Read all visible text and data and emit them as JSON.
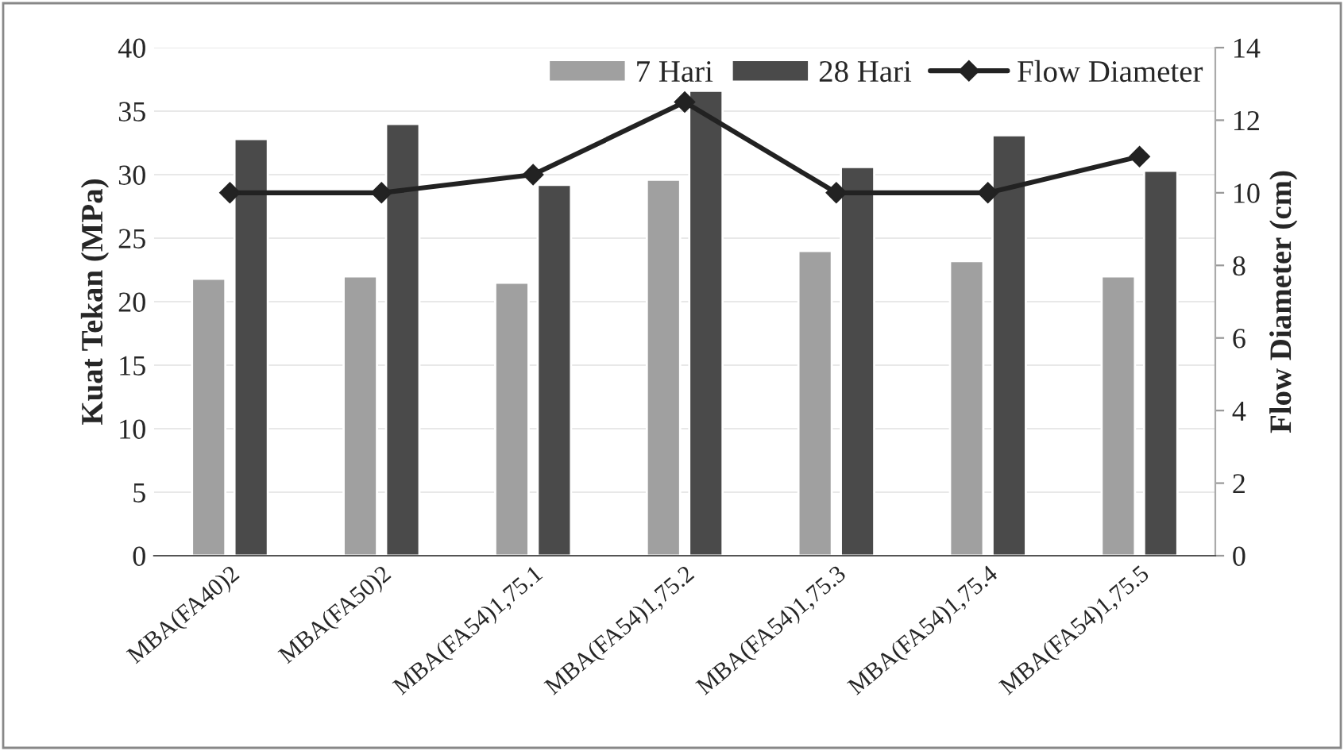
{
  "chart_data": {
    "type": "bar",
    "ylabel": "Kuat Tekan (MPa)",
    "y2label": "Flow Diameter (cm)",
    "categories": [
      "MBA(FA40)2",
      "MBA(FA50)2",
      "MBA(FA54)1,75.1",
      "MBA(FA54)1,75.2",
      "MBA(FA54)1,75.3",
      "MBA(FA54)1,75.4",
      "MBA(FA54)1,75.5"
    ],
    "series": [
      {
        "name": "7 Hari",
        "color": "#a0a0a0",
        "values": [
          21.8,
          22.0,
          21.5,
          29.6,
          24.0,
          23.2,
          22.0
        ]
      },
      {
        "name": "28 Hari",
        "color": "#4a4a4a",
        "values": [
          32.8,
          34.0,
          29.2,
          36.6,
          30.6,
          33.1,
          30.3
        ]
      },
      {
        "name": "Flow Diameter",
        "type": "line",
        "axis": "y2",
        "color": "#222222",
        "marker": "diamond",
        "values": [
          10,
          10,
          10.5,
          12.5,
          10,
          10,
          11
        ]
      }
    ],
    "ylim": [
      0,
      40
    ],
    "yticks": [
      0,
      5,
      10,
      15,
      20,
      25,
      30,
      35,
      40
    ],
    "y2lim": [
      0,
      14
    ],
    "y2ticks": [
      0,
      2,
      4,
      6,
      8,
      10,
      12,
      14
    ],
    "grid": "y",
    "legend": "top right"
  }
}
